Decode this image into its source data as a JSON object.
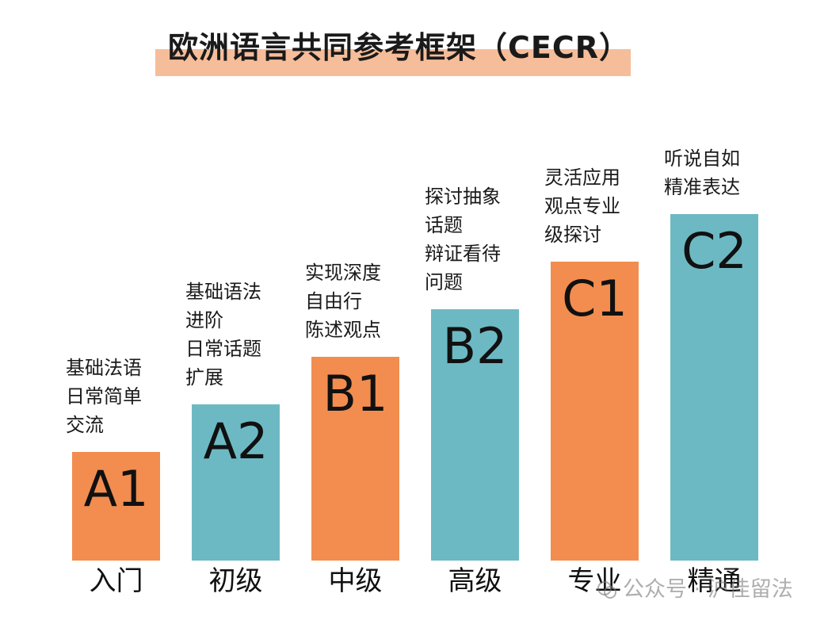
{
  "title": "欧洲语言共同参考框架（CECR）",
  "watermark": "公众号 · 沪佳留法",
  "colors": {
    "orange": "#f28d4f",
    "teal": "#6db9c3",
    "title_band": "#f6bd9a"
  },
  "chart_data": {
    "type": "bar",
    "title": "欧洲语言共同参考框架（CECR）",
    "categories": [
      "入门",
      "初级",
      "中级",
      "高级",
      "专业",
      "精通"
    ],
    "bar_labels": [
      "A1",
      "A2",
      "B1",
      "B2",
      "C1",
      "C2"
    ],
    "values": [
      1,
      2,
      3,
      4,
      5,
      6
    ],
    "ylim": [
      0,
      7
    ],
    "bar_colors": [
      "#f28d4f",
      "#6db9c3",
      "#f28d4f",
      "#6db9c3",
      "#f28d4f",
      "#6db9c3"
    ],
    "descriptions": [
      [
        "基础法语",
        "日常简单",
        "交流"
      ],
      [
        "基础语法",
        "进阶",
        "日常话题",
        "扩展"
      ],
      [
        "实现深度",
        "自由行",
        "陈述观点"
      ],
      [
        "探讨抽象",
        "话题",
        "辩证看待",
        "问题"
      ],
      [
        "灵活应用",
        "观点专业",
        "级探讨"
      ],
      [
        "听说自如",
        "精准表达"
      ]
    ],
    "xlabel": "",
    "ylabel": "",
    "grid": false,
    "legend": "none"
  }
}
